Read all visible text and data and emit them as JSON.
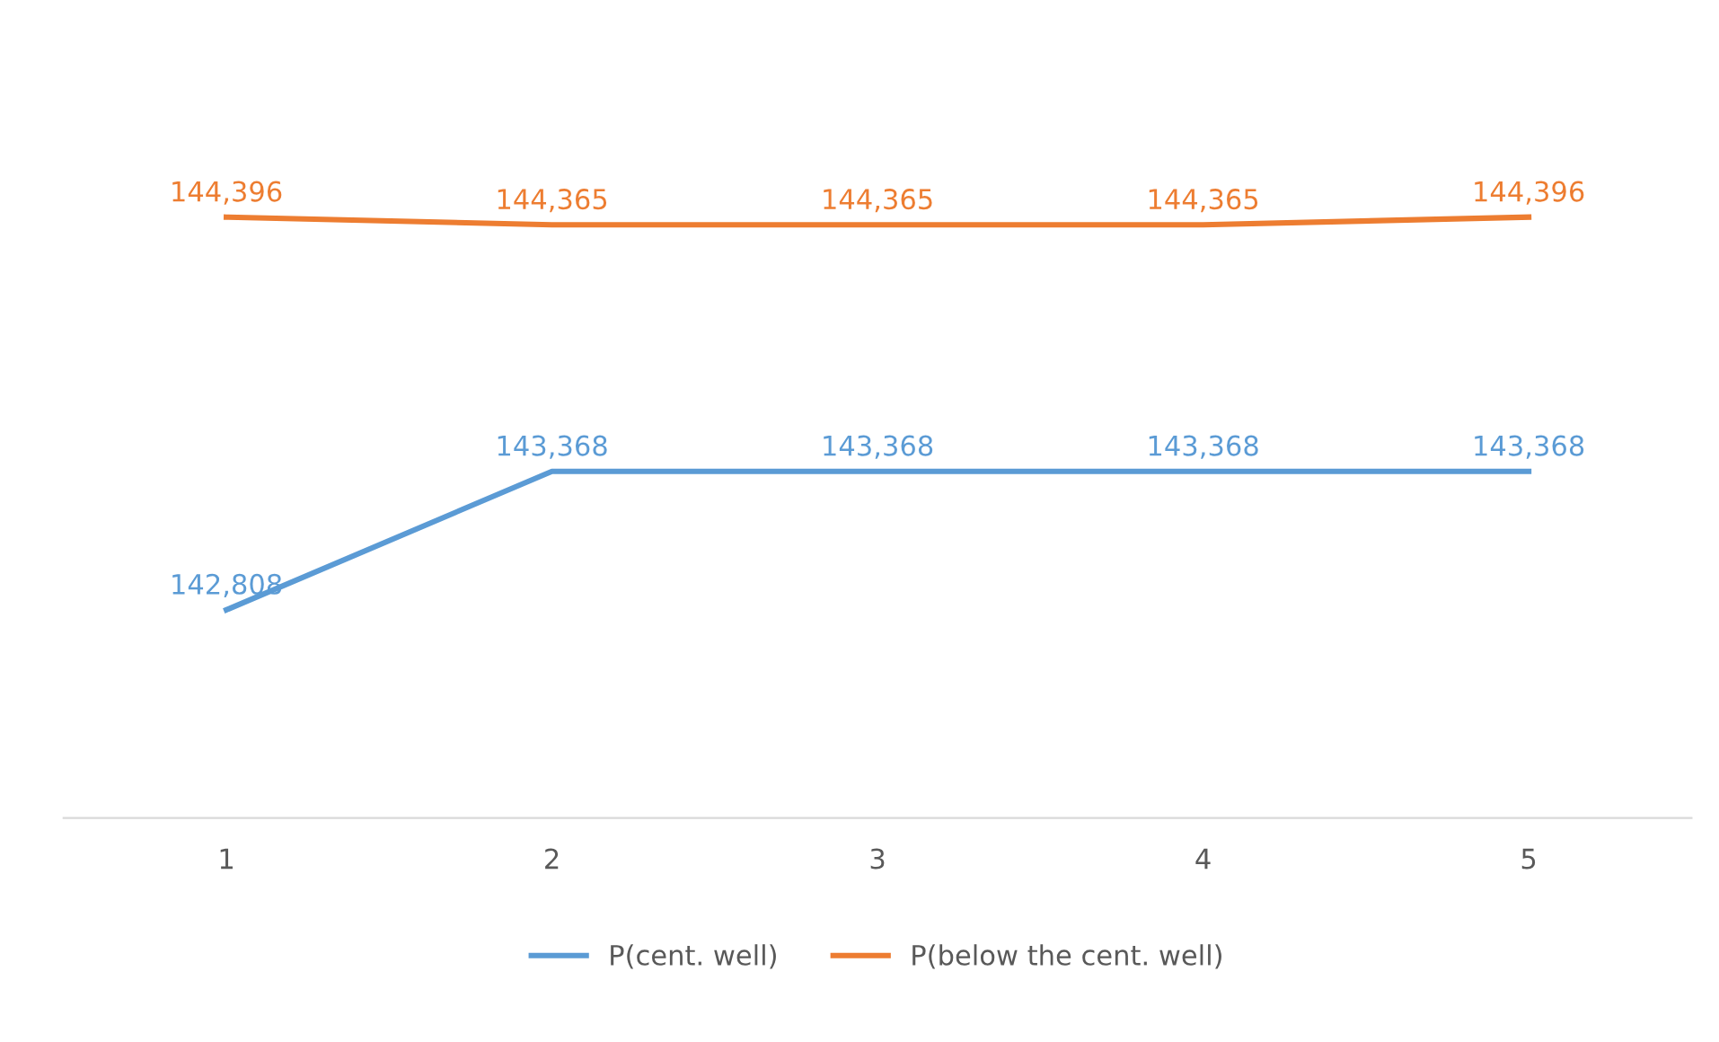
{
  "chart_data": {
    "type": "line",
    "categories": [
      "1",
      "2",
      "3",
      "4",
      "5"
    ],
    "series": [
      {
        "name": "P(cent. well)",
        "color": "#5b9bd5",
        "values": [
          142808,
          143368,
          143368,
          143368,
          143368
        ],
        "value_labels": [
          "142,808",
          "143,368",
          "143,368",
          "143,368",
          "143,368"
        ]
      },
      {
        "name": "P(below the cent. well)",
        "color": "#ed7d31",
        "values": [
          144396,
          144365,
          144365,
          144365,
          144396
        ],
        "value_labels": [
          "144,396",
          "144,365",
          "144,365",
          "144,365",
          "144,396"
        ]
      }
    ],
    "legend": "bottom",
    "grid": false,
    "marker": "none",
    "line_style": "solid"
  }
}
